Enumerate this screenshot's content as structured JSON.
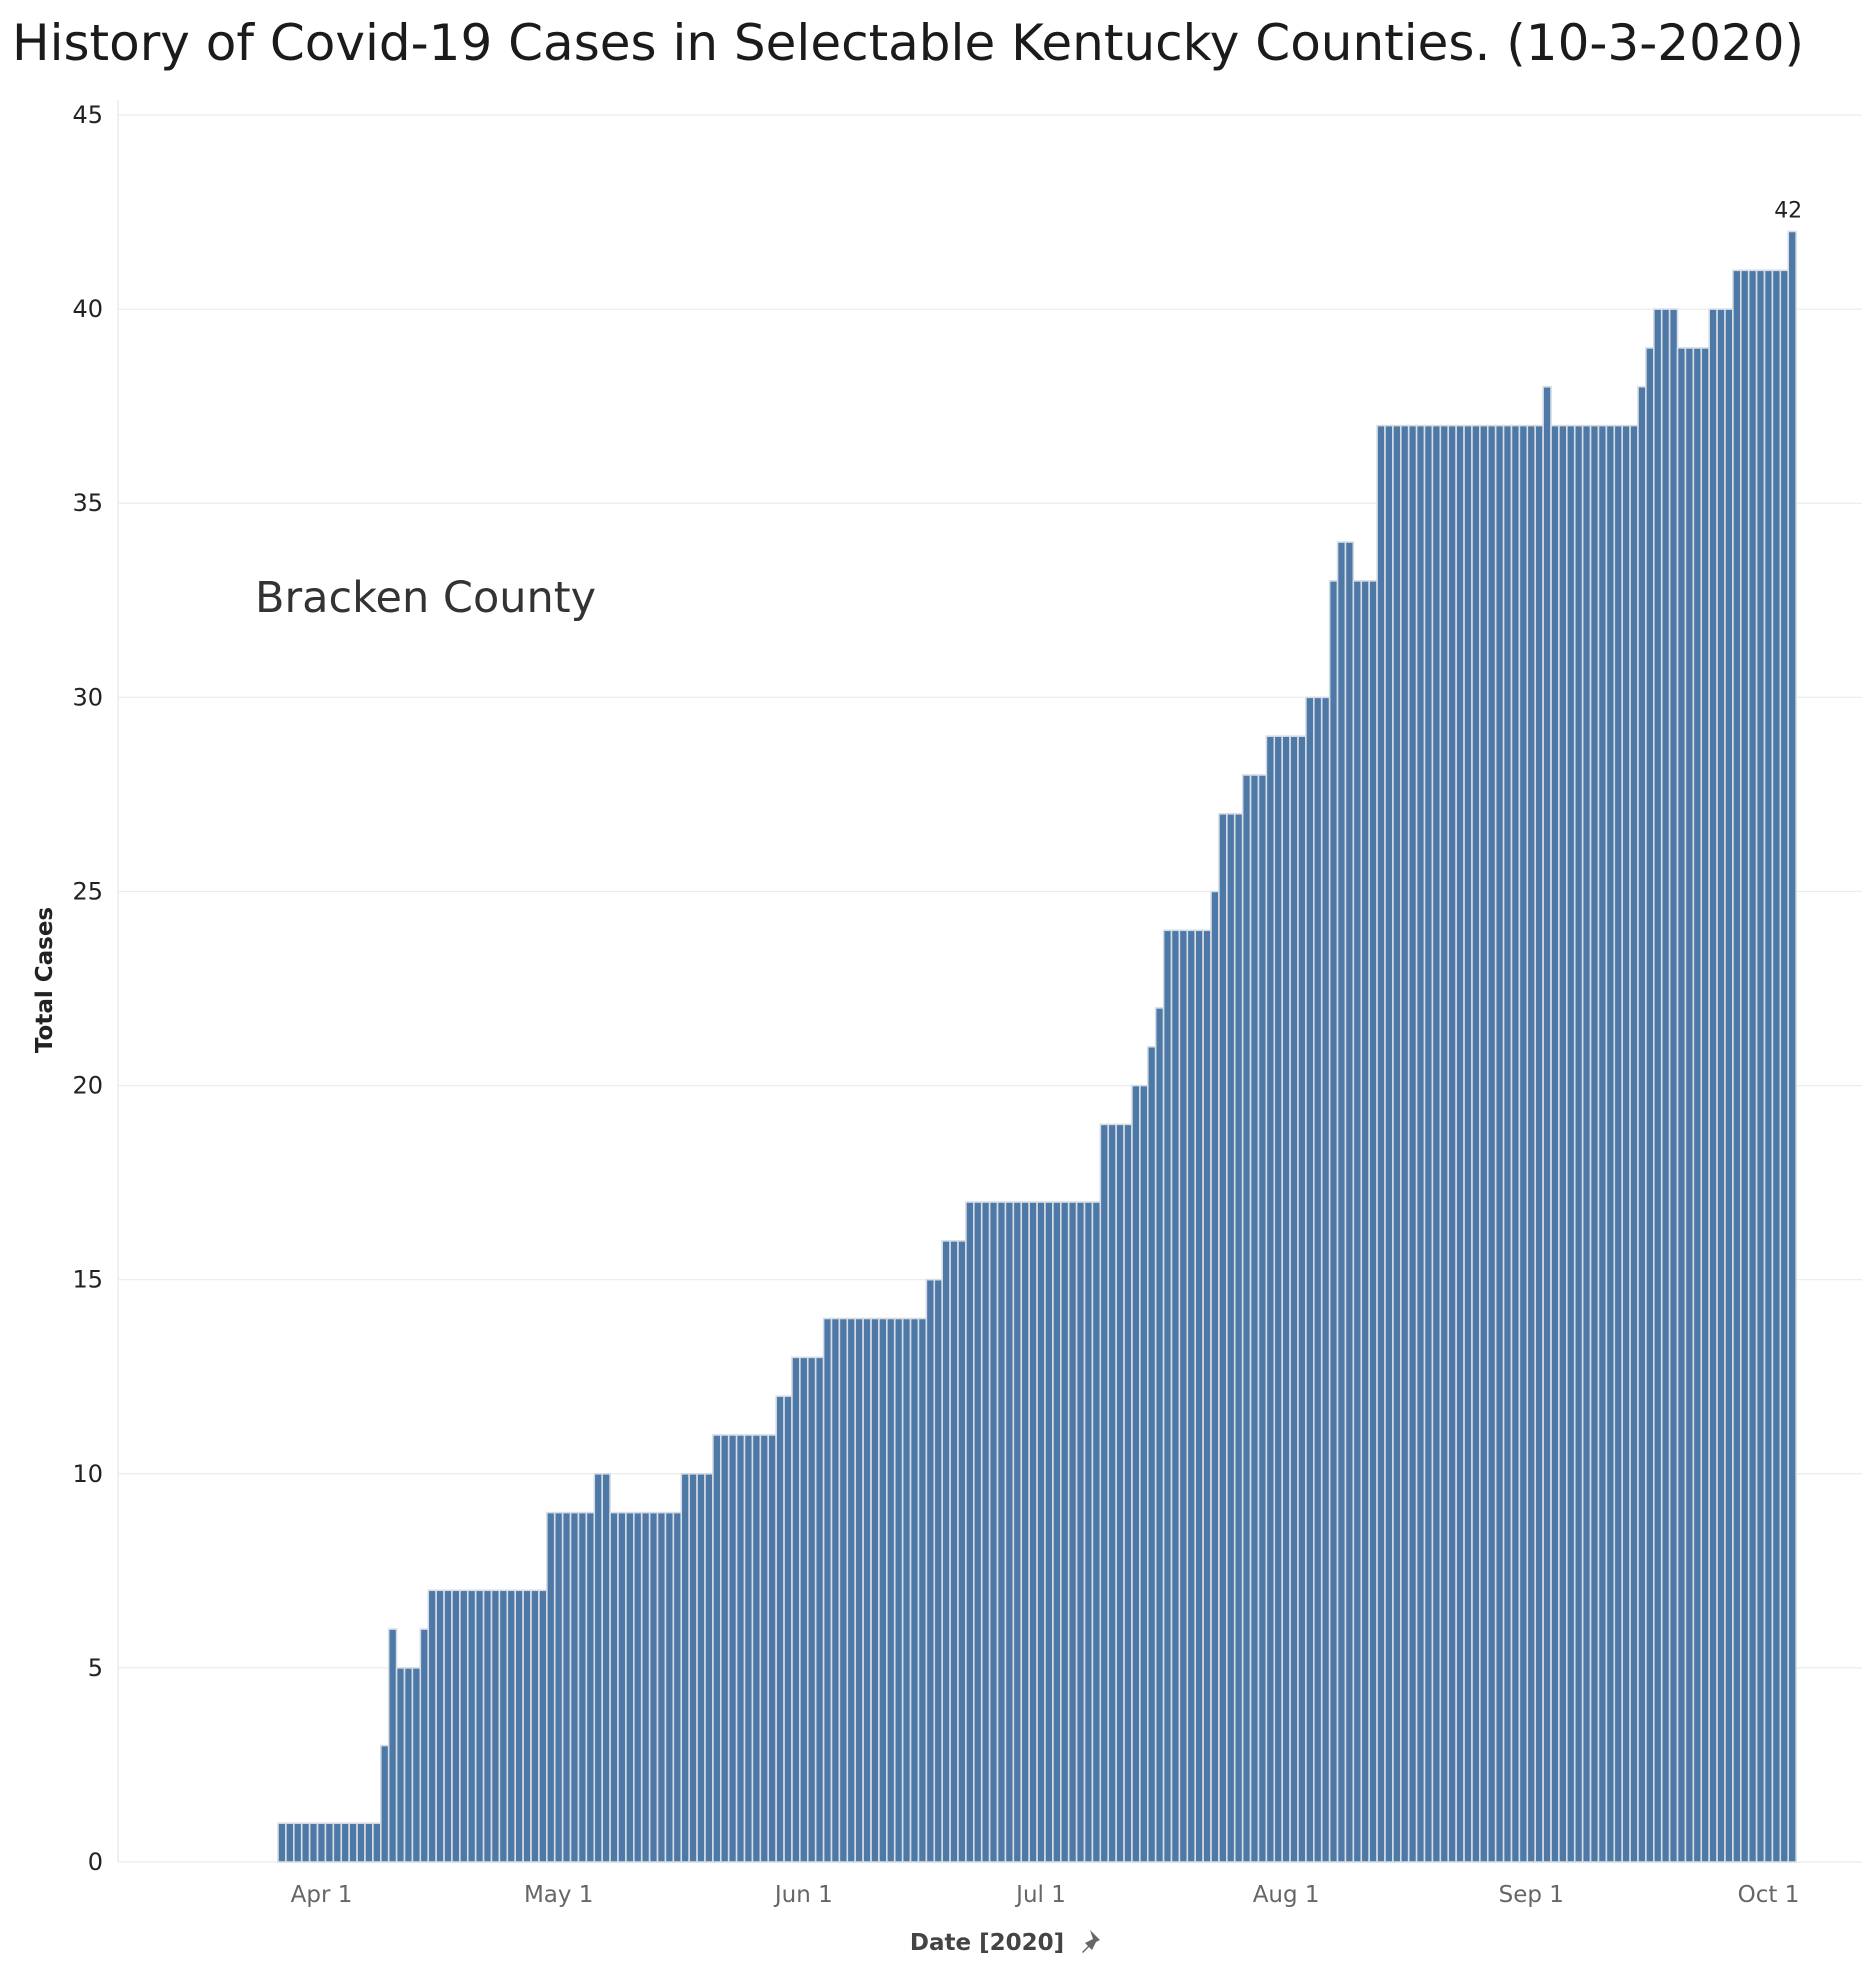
{
  "chart_data": {
    "type": "bar",
    "title": "History of Covid-19 Cases in Selectable Kentucky Counties. (10-3-2020)",
    "xlabel": "Date [2020]",
    "ylabel": "Total Cases",
    "annotation": "Bracken County",
    "x_start": "2020-03-27",
    "x_end": "2020-10-03",
    "x_ticks": [
      {
        "date": "2020-04-01",
        "label": "Apr 1"
      },
      {
        "date": "2020-05-01",
        "label": "May 1"
      },
      {
        "date": "2020-06-01",
        "label": "Jun 1"
      },
      {
        "date": "2020-07-01",
        "label": "Jul 1"
      },
      {
        "date": "2020-08-01",
        "label": "Aug 1"
      },
      {
        "date": "2020-09-01",
        "label": "Sep 1"
      },
      {
        "date": "2020-10-01",
        "label": "Oct 1"
      }
    ],
    "ylim": [
      0,
      45
    ],
    "y_ticks": [
      0,
      5,
      10,
      15,
      20,
      25,
      30,
      35,
      40,
      45
    ],
    "grid": true,
    "bar_color": "#4e79a7",
    "last_value_label": "42",
    "values": [
      1,
      1,
      1,
      1,
      1,
      1,
      1,
      1,
      1,
      1,
      1,
      1,
      1,
      3,
      6,
      5,
      5,
      5,
      6,
      7,
      7,
      7,
      7,
      7,
      7,
      7,
      7,
      7,
      7,
      7,
      7,
      7,
      7,
      7,
      9,
      9,
      9,
      9,
      9,
      9,
      10,
      10,
      9,
      9,
      9,
      9,
      9,
      9,
      9,
      9,
      9,
      10,
      10,
      10,
      10,
      11,
      11,
      11,
      11,
      11,
      11,
      11,
      11,
      12,
      12,
      13,
      13,
      13,
      13,
      14,
      14,
      14,
      14,
      14,
      14,
      14,
      14,
      14,
      14,
      14,
      14,
      14,
      15,
      15,
      16,
      16,
      16,
      17,
      17,
      17,
      17,
      17,
      17,
      17,
      17,
      17,
      17,
      17,
      17,
      17,
      17,
      17,
      17,
      17,
      19,
      19,
      19,
      19,
      20,
      20,
      21,
      22,
      24,
      24,
      24,
      24,
      24,
      24,
      25,
      27,
      27,
      27,
      28,
      28,
      28,
      29,
      29,
      29,
      29,
      29,
      30,
      30,
      30,
      33,
      34,
      34,
      33,
      33,
      33,
      37,
      37,
      37,
      37,
      37,
      37,
      37,
      37,
      37,
      37,
      37,
      37,
      37,
      37,
      37,
      37,
      37,
      37,
      37,
      37,
      37,
      38,
      37,
      37,
      37,
      37,
      37,
      37,
      37,
      37,
      37,
      37,
      37,
      38,
      39,
      40,
      40,
      40,
      39,
      39,
      39,
      39,
      40,
      40,
      40,
      41,
      41,
      41,
      41,
      41,
      41,
      41,
      42
    ]
  }
}
